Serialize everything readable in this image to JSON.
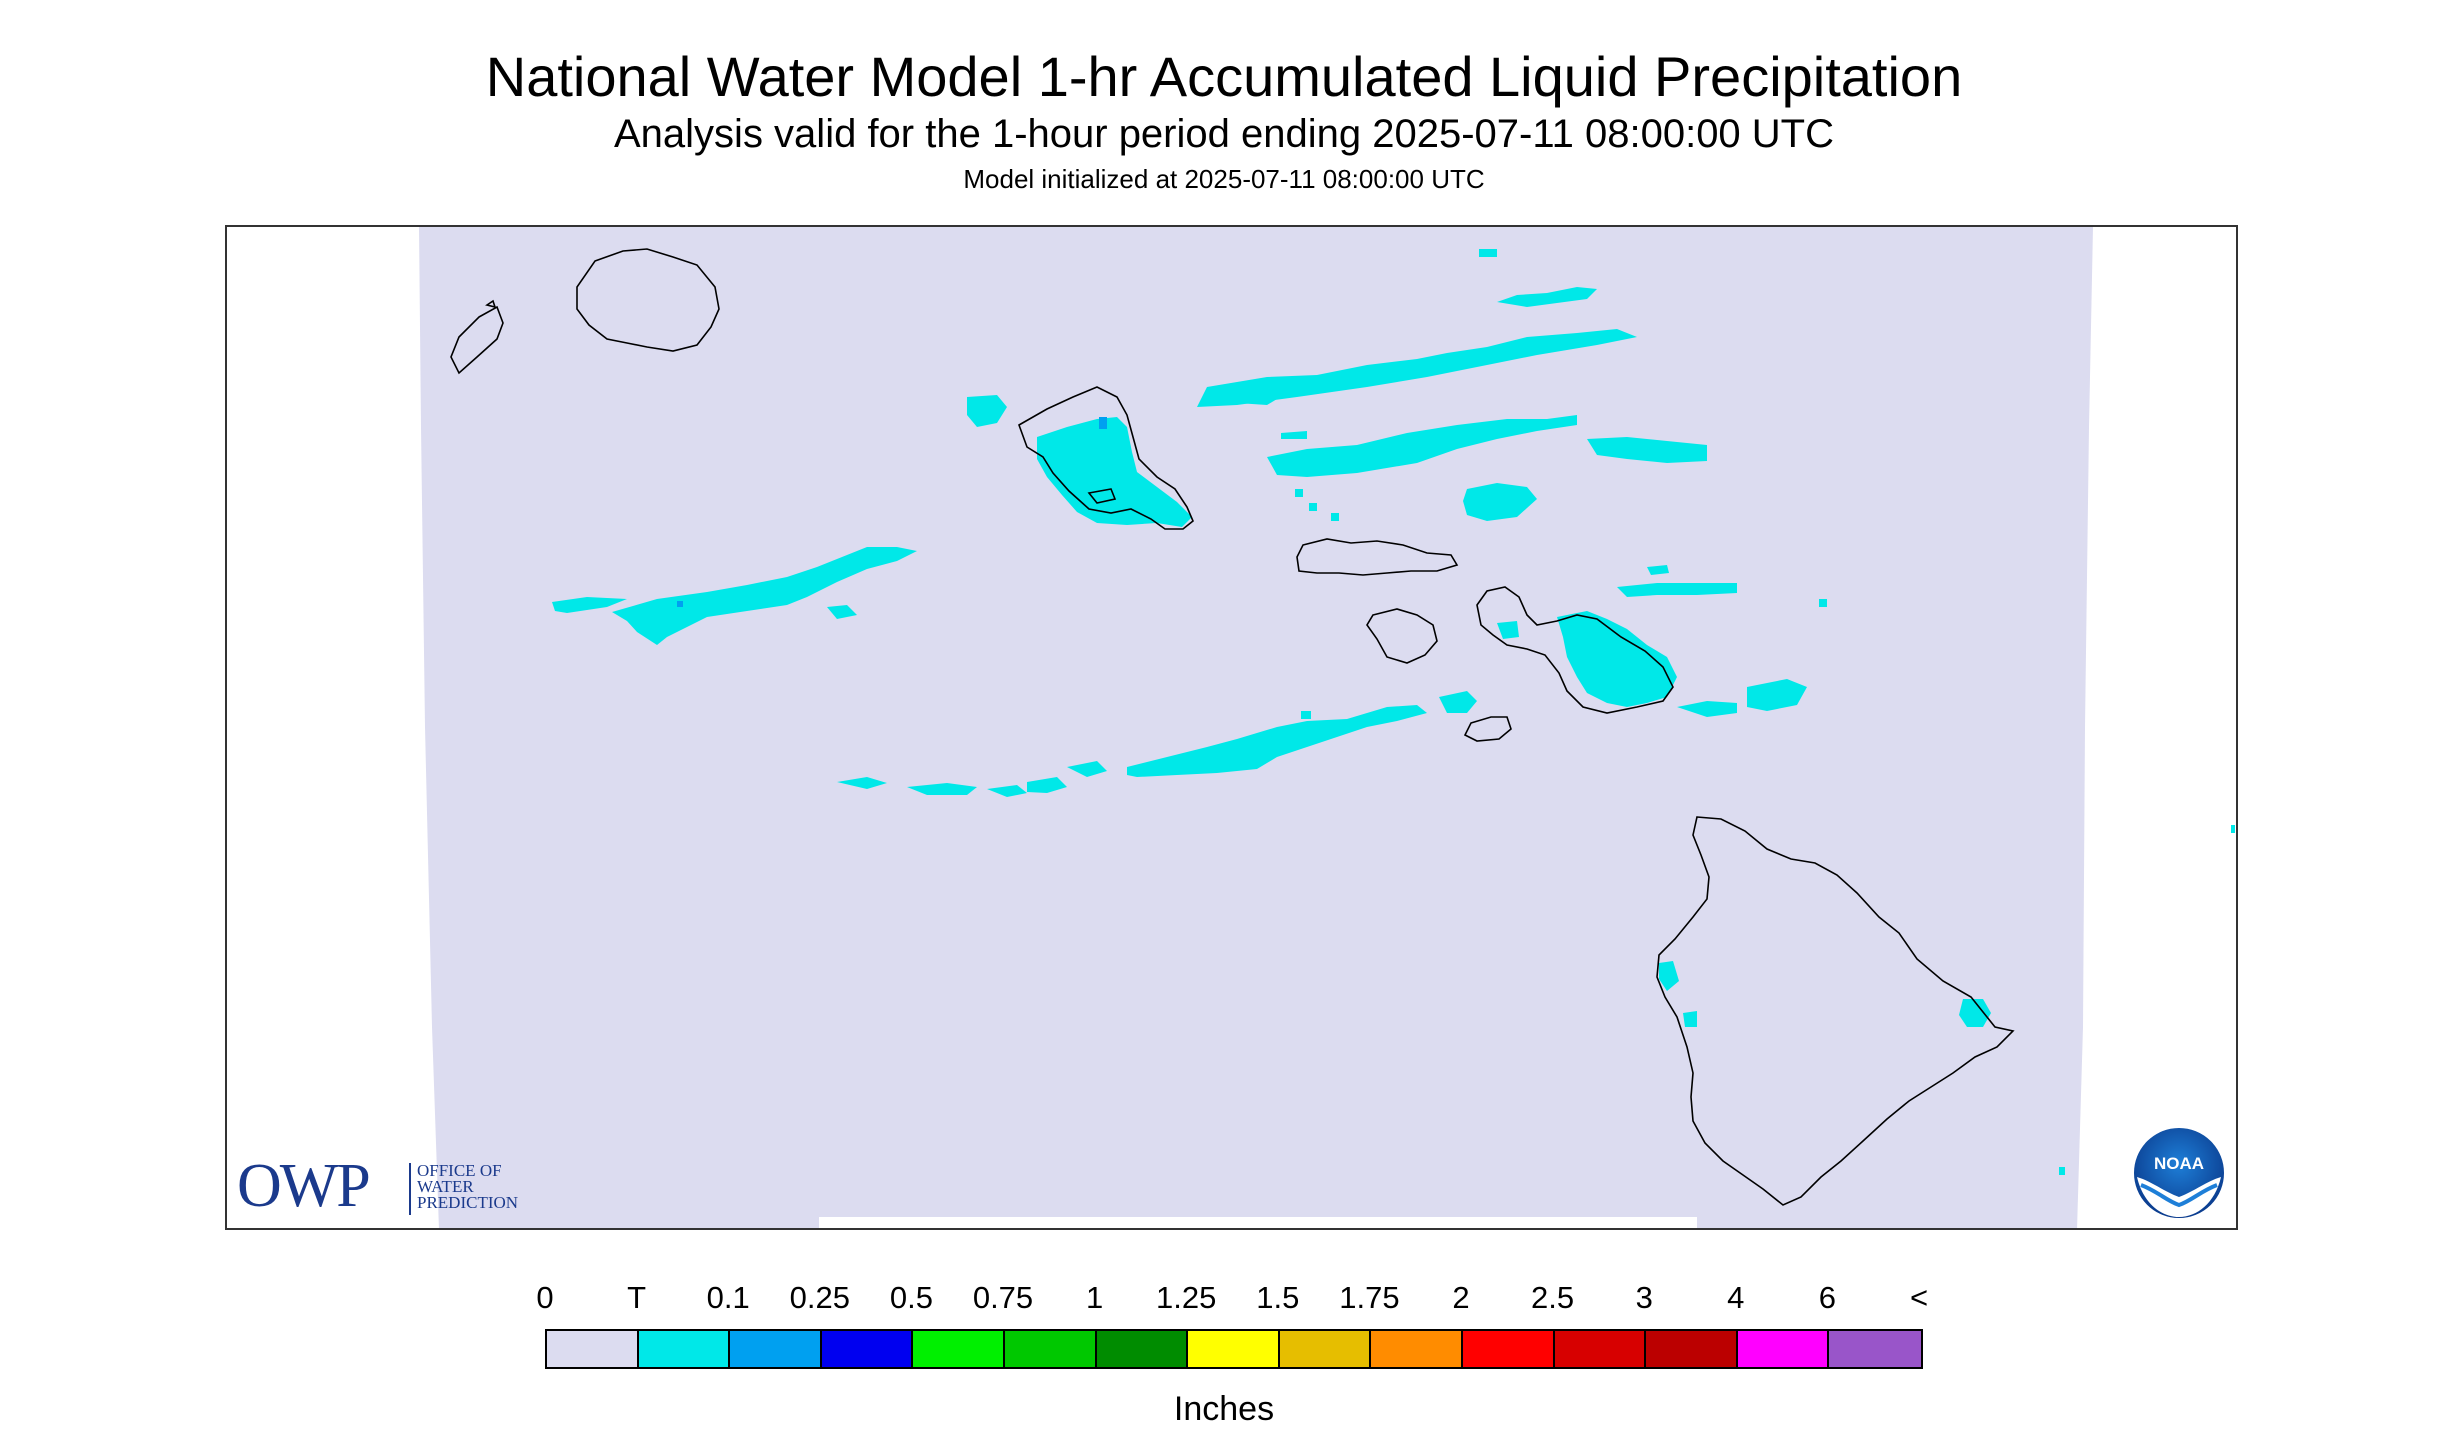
{
  "header": {
    "title": "National Water Model 1-hr Accumulated Liquid Precipitation",
    "subtitle": "Analysis valid for the 1-hour period ending 2025-07-11 08:00:00 UTC",
    "init": "Model initialized at 2025-07-11 08:00:00 UTC"
  },
  "logos": {
    "owp_main": "OWP",
    "owp_line1": "OFFICE OF",
    "owp_line2": "WATER",
    "owp_line3": "PREDICTION",
    "noaa": "NOAA"
  },
  "legend": {
    "ticks": [
      "0",
      "T",
      "0.1",
      "0.25",
      "0.5",
      "0.75",
      "1",
      "1.25",
      "1.5",
      "1.75",
      "2",
      "2.5",
      "3",
      "4",
      "6",
      "<"
    ],
    "colors": [
      "#dcdcf0",
      "#00e8e8",
      "#00a0f0",
      "#0000f0",
      "#00f000",
      "#00c800",
      "#008c00",
      "#ffff00",
      "#e6be00",
      "#ff8c00",
      "#ff0000",
      "#d70000",
      "#bb0000",
      "#ff00ff",
      "#9955c9"
    ],
    "units": "Inches"
  },
  "colors": {
    "domain_fill": "#dcdcf0",
    "trace_precip": "#00e8e8",
    "light_precip": "#00a0f0",
    "coastline": "#000000"
  }
}
